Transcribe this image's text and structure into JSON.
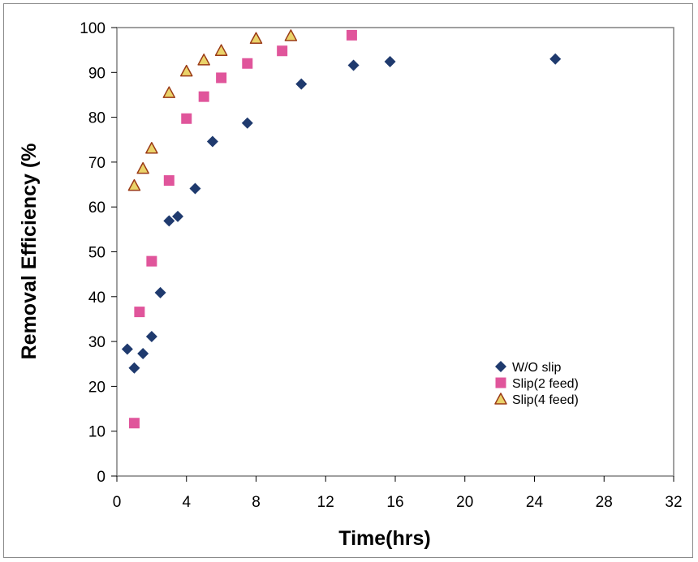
{
  "chart_data": {
    "type": "scatter",
    "title": "",
    "xlabel": "Time(hrs)",
    "ylabel": "Removal Efficiency (%",
    "xlim": [
      0,
      32
    ],
    "ylim": [
      0,
      100
    ],
    "xticks": [
      0,
      4,
      8,
      12,
      16,
      20,
      24,
      28,
      32
    ],
    "yticks": [
      0,
      10,
      20,
      30,
      40,
      50,
      60,
      70,
      80,
      90,
      100
    ],
    "grid": false,
    "legend_position": "right",
    "series": [
      {
        "name": "W/O slip",
        "marker": "diamond",
        "color": "#1f3a6e",
        "points": [
          [
            0.6,
            28.3
          ],
          [
            1.0,
            24.1
          ],
          [
            1.5,
            27.3
          ],
          [
            2.0,
            31.1
          ],
          [
            2.5,
            40.9
          ],
          [
            3.0,
            56.9
          ],
          [
            3.5,
            57.9
          ],
          [
            4.5,
            64.1
          ],
          [
            5.5,
            74.6
          ],
          [
            7.5,
            78.7
          ],
          [
            10.6,
            87.4
          ],
          [
            13.6,
            91.6
          ],
          [
            15.7,
            92.4
          ],
          [
            25.2,
            93.0
          ]
        ]
      },
      {
        "name": "Slip(2 feed)",
        "marker": "square",
        "color": "#e0559b",
        "points": [
          [
            1.0,
            11.8
          ],
          [
            1.3,
            36.6
          ],
          [
            2.0,
            47.9
          ],
          [
            3.0,
            65.9
          ],
          [
            4.0,
            79.7
          ],
          [
            5.0,
            84.6
          ],
          [
            6.0,
            88.8
          ],
          [
            7.5,
            92.0
          ],
          [
            9.5,
            94.8
          ],
          [
            13.5,
            98.3
          ]
        ]
      },
      {
        "name": "Slip(4 feed)",
        "marker": "triangle",
        "color": "#ead36a",
        "stroke": "#9a3a16",
        "points": [
          [
            1.0,
            64.8
          ],
          [
            1.5,
            68.6
          ],
          [
            2.0,
            73.1
          ],
          [
            3.0,
            85.5
          ],
          [
            4.0,
            90.3
          ],
          [
            5.0,
            92.8
          ],
          [
            6.0,
            94.9
          ],
          [
            8.0,
            97.6
          ],
          [
            10.0,
            98.2
          ]
        ]
      }
    ]
  }
}
